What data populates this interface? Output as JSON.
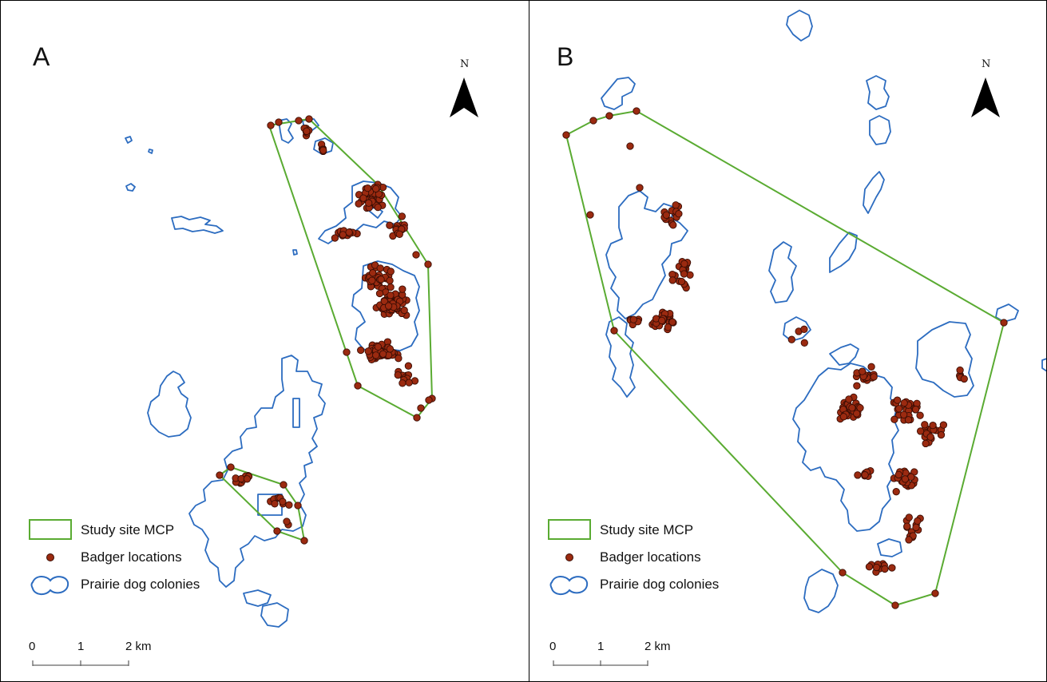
{
  "panels": [
    {
      "id": "A",
      "label": "A",
      "north_label": "N",
      "legend": {
        "mcp": "Study site MCP",
        "badger": "Badger locations",
        "colonies": "Prairie dog colonies"
      },
      "scale_bar": {
        "ticks": [
          "0",
          "1",
          "2 km"
        ]
      }
    },
    {
      "id": "B",
      "label": "B",
      "north_label": "N",
      "legend": {
        "mcp": "Study site MCP",
        "badger": "Badger locations",
        "colonies": "Prairie dog colonies"
      },
      "scale_bar": {
        "ticks": [
          "0",
          "1",
          "2 km"
        ]
      }
    }
  ],
  "colors": {
    "mcp_outline": "#5aab32",
    "badger_fill": "#9b2a10",
    "badger_stroke": "#3a0d04",
    "colony_outline": "#2c6cc0",
    "frame": "#000000"
  },
  "icons": {
    "north_arrow": "north-arrow-icon"
  }
}
